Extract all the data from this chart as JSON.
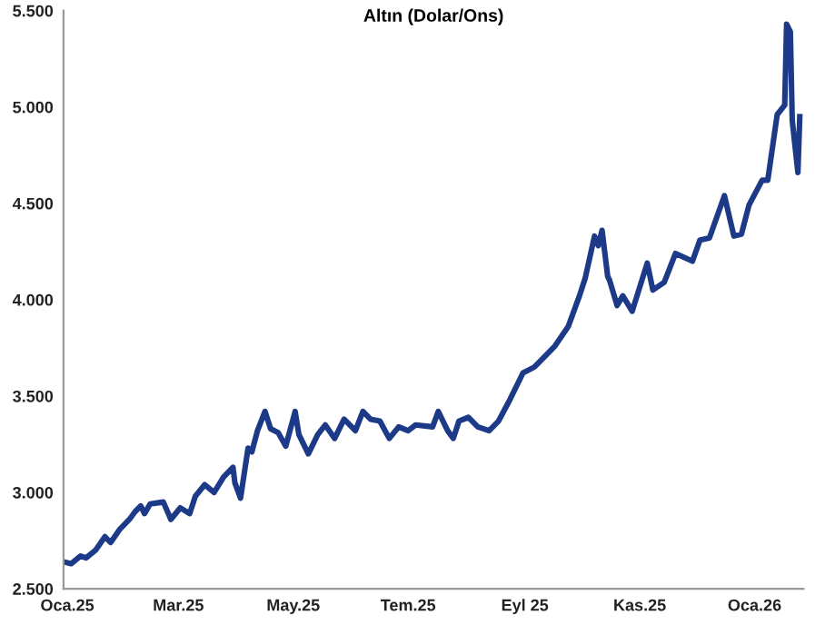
{
  "chart_data": {
    "type": "line",
    "title": "Altın (Dolar/Ons)",
    "x": [
      "2024-12-30",
      "2025-01-03",
      "2025-01-08",
      "2025-01-11",
      "2025-01-16",
      "2025-01-21",
      "2025-01-24",
      "2025-01-29",
      "2025-02-03",
      "2025-02-06",
      "2025-02-09",
      "2025-02-11",
      "2025-02-14",
      "2025-02-21",
      "2025-02-25",
      "2025-03-02",
      "2025-03-07",
      "2025-03-10",
      "2025-03-15",
      "2025-03-20",
      "2025-03-25",
      "2025-03-30",
      "2025-03-31",
      "2025-04-03",
      "2025-04-07",
      "2025-04-09",
      "2025-04-12",
      "2025-04-16",
      "2025-04-19",
      "2025-04-23",
      "2025-04-27",
      "2025-05-02",
      "2025-05-04",
      "2025-05-09",
      "2025-05-14",
      "2025-05-18",
      "2025-05-23",
      "2025-05-28",
      "2025-06-03",
      "2025-06-07",
      "2025-06-11",
      "2025-06-16",
      "2025-06-21",
      "2025-06-26",
      "2025-07-01",
      "2025-07-05",
      "2025-07-14",
      "2025-07-17",
      "2025-07-22",
      "2025-07-25",
      "2025-07-28",
      "2025-08-02",
      "2025-08-07",
      "2025-08-13",
      "2025-08-18",
      "2025-08-24",
      "2025-08-31",
      "2025-09-06",
      "2025-09-11",
      "2025-09-17",
      "2025-09-24",
      "2025-09-30",
      "2025-10-03",
      "2025-10-08",
      "2025-10-10",
      "2025-10-12",
      "2025-10-15",
      "2025-10-16",
      "2025-10-20",
      "2025-10-23",
      "2025-10-28",
      "2025-11-05",
      "2025-11-08",
      "2025-11-14",
      "2025-11-20",
      "2025-11-29",
      "2025-12-03",
      "2025-12-08",
      "2025-12-16",
      "2025-12-21",
      "2025-12-25",
      "2025-12-29",
      "2026-01-05",
      "2026-01-08",
      "2026-01-13",
      "2026-01-17",
      "2026-01-18",
      "2026-01-20",
      "2026-01-21",
      "2026-01-24",
      "2026-01-25"
    ],
    "series": [
      {
        "color": "#1c3a87",
        "values": [
          2640,
          2630,
          2670,
          2660,
          2700,
          2770,
          2740,
          2810,
          2860,
          2900,
          2930,
          2890,
          2940,
          2950,
          2860,
          2920,
          2890,
          2980,
          3040,
          3000,
          3080,
          3130,
          3050,
          2970,
          3230,
          3210,
          3320,
          3420,
          3330,
          3310,
          3240,
          3420,
          3300,
          3200,
          3300,
          3350,
          3280,
          3380,
          3320,
          3420,
          3380,
          3370,
          3280,
          3340,
          3320,
          3350,
          3340,
          3420,
          3320,
          3280,
          3370,
          3390,
          3340,
          3320,
          3370,
          3480,
          3620,
          3650,
          3700,
          3760,
          3860,
          4020,
          4110,
          4330,
          4280,
          4360,
          4120,
          4100,
          3970,
          4020,
          3940,
          4190,
          4050,
          4090,
          4240,
          4200,
          4310,
          4320,
          4540,
          4330,
          4340,
          4490,
          4620,
          4620,
          4960,
          5010,
          5430,
          5390,
          4930,
          4660,
          4950
        ]
      }
    ],
    "xlim": [
      "2024-12-30",
      "2026-01-27"
    ],
    "xticks": [
      {
        "value": "2025-01-01",
        "label": "Oca.25"
      },
      {
        "value": "2025-03-01",
        "label": "Mar.25"
      },
      {
        "value": "2025-05-01",
        "label": "May.25"
      },
      {
        "value": "2025-07-01",
        "label": "Tem.25"
      },
      {
        "value": "2025-09-01",
        "label": "Eyl 25"
      },
      {
        "value": "2025-11-01",
        "label": "Kas.25"
      },
      {
        "value": "2026-01-01",
        "label": "Oca.26"
      }
    ],
    "ylim": [
      2500,
      5500
    ],
    "yticks": [
      {
        "value": 2500,
        "label": "2.500"
      },
      {
        "value": 3000,
        "label": "3.000"
      },
      {
        "value": 3500,
        "label": "3.500"
      },
      {
        "value": 4000,
        "label": "4.000"
      },
      {
        "value": 4500,
        "label": "4.500"
      },
      {
        "value": 5000,
        "label": "5.000"
      },
      {
        "value": 5500,
        "label": "5.500"
      }
    ],
    "grid": false,
    "legend": false,
    "marker": "none",
    "line_style": "solid"
  }
}
